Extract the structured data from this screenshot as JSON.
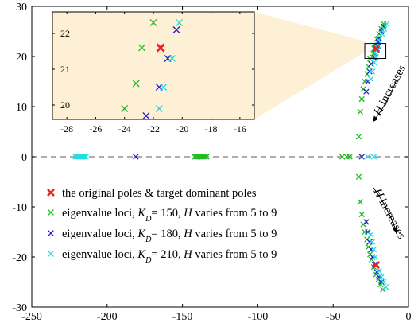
{
  "chart_data": {
    "type": "scatter",
    "title": "",
    "xlabel": "",
    "ylabel": "",
    "xlim": [
      -250,
      0
    ],
    "ylim": [
      -30,
      30
    ],
    "xticks": [
      -250,
      -200,
      -150,
      -100,
      -50,
      0
    ],
    "yticks": [
      -30,
      -20,
      -10,
      0,
      10,
      20,
      30
    ],
    "grid": false,
    "legend_position": "lower-left",
    "reference_line": {
      "y": 0,
      "style": "dashed"
    },
    "legend": [
      {
        "key": "original",
        "parts": [
          {
            "t": "the original poles & target dominant poles"
          }
        ]
      },
      {
        "key": "kd150",
        "parts": [
          {
            "t": "eigenvalue loci, "
          },
          {
            "t": "K",
            "it": true
          },
          {
            "t": "D",
            "sub": true,
            "it": true
          },
          {
            "t": "= 150, "
          },
          {
            "t": "H",
            "it": true
          },
          {
            "t": " varies from 5 to 9"
          }
        ]
      },
      {
        "key": "kd180",
        "parts": [
          {
            "t": "eigenvalue loci, "
          },
          {
            "t": "K",
            "it": true
          },
          {
            "t": "D",
            "sub": true,
            "it": true
          },
          {
            "t": "= 180, "
          },
          {
            "t": "H",
            "it": true
          },
          {
            "t": " varies from 5 to 9"
          }
        ]
      },
      {
        "key": "kd210",
        "parts": [
          {
            "t": "eigenvalue loci, "
          },
          {
            "t": "K",
            "it": true
          },
          {
            "t": "D",
            "sub": true,
            "it": true
          },
          {
            "t": "= 210, "
          },
          {
            "t": "H",
            "it": true
          },
          {
            "t": " varies from 5 to 9"
          }
        ]
      }
    ],
    "series": [
      {
        "key": "kd150",
        "color": "#22bb22",
        "points": [
          [
            -142,
            0
          ],
          [
            -141,
            0
          ],
          [
            -140,
            0
          ],
          [
            -139,
            0
          ],
          [
            -138,
            0
          ],
          [
            -137,
            0
          ],
          [
            -136,
            0
          ],
          [
            -135,
            0
          ],
          [
            -134,
            0
          ],
          [
            -44,
            0
          ],
          [
            -41,
            0
          ],
          [
            -39,
            0
          ],
          [
            -33,
            -4
          ],
          [
            -32,
            -9
          ],
          [
            -31,
            -11.5
          ],
          [
            -30,
            -13.5
          ],
          [
            -29,
            -15
          ],
          [
            -27.5,
            -16.5
          ],
          [
            -26.5,
            -18
          ],
          [
            -25.5,
            -19.5
          ],
          [
            -24.5,
            -20.5
          ],
          [
            -23,
            -22
          ],
          [
            -21.5,
            -23.5
          ],
          [
            -20,
            -24.5
          ],
          [
            -18.5,
            -25.5
          ],
          [
            -17,
            -26.5
          ],
          [
            -33,
            4
          ],
          [
            -32,
            9
          ],
          [
            -31,
            11.5
          ],
          [
            -30,
            13.5
          ],
          [
            -29,
            15
          ],
          [
            -27.5,
            16.5
          ],
          [
            -26.5,
            18
          ],
          [
            -25.5,
            19.5
          ],
          [
            -24,
            19.9
          ],
          [
            -23.2,
            20.6
          ],
          [
            -22.8,
            21.6
          ],
          [
            -22,
            22.3
          ],
          [
            -21,
            23.5
          ],
          [
            -19.5,
            24.5
          ],
          [
            -18,
            25.5
          ],
          [
            -16.5,
            26.5
          ]
        ]
      },
      {
        "key": "kd180",
        "color": "#1f1fd0",
        "points": [
          [
            -181,
            0
          ],
          [
            -31,
            0
          ],
          [
            -28,
            -13
          ],
          [
            -27,
            -15
          ],
          [
            -25.8,
            -17
          ],
          [
            -24.8,
            -18.5
          ],
          [
            -23.8,
            -20
          ],
          [
            -22.5,
            -21.5
          ],
          [
            -21,
            -23
          ],
          [
            -19.5,
            -24
          ],
          [
            -18,
            -25
          ],
          [
            -28,
            13
          ],
          [
            -27,
            15
          ],
          [
            -25.8,
            17
          ],
          [
            -24.8,
            18.5
          ],
          [
            -22.5,
            19.7
          ],
          [
            -21.6,
            20.5
          ],
          [
            -21,
            21.3
          ],
          [
            -20.4,
            22.1
          ],
          [
            -20,
            22.9
          ],
          [
            -19.5,
            23.6
          ],
          [
            -18,
            25
          ],
          [
            -16.5,
            26
          ]
        ]
      },
      {
        "key": "kd210",
        "color": "#22dddd",
        "points": [
          [
            -221,
            0
          ],
          [
            -220,
            0
          ],
          [
            -219,
            0
          ],
          [
            -218,
            0
          ],
          [
            -217,
            0
          ],
          [
            -216,
            0
          ],
          [
            -215,
            0
          ],
          [
            -214,
            0
          ],
          [
            -27,
            0
          ],
          [
            -23,
            0
          ],
          [
            -25,
            -15.5
          ],
          [
            -24,
            -17
          ],
          [
            -23,
            -18.5
          ],
          [
            -22,
            -20
          ],
          [
            -21,
            -21.5
          ],
          [
            -19.5,
            -22.8
          ],
          [
            -18,
            -24
          ],
          [
            -16.5,
            -25
          ],
          [
            -15,
            -26
          ],
          [
            -25,
            15.5
          ],
          [
            -24,
            17
          ],
          [
            -22.8,
            18.8
          ],
          [
            -21.6,
            19.9
          ],
          [
            -21.3,
            20.5
          ],
          [
            -20.7,
            21.3
          ],
          [
            -20.2,
            22.3
          ],
          [
            -19.7,
            23.3
          ],
          [
            -17.5,
            24.5
          ],
          [
            -16,
            25.5
          ],
          [
            -14.5,
            26.5
          ]
        ]
      }
    ],
    "original_poles": {
      "color": "#ee2222",
      "points": [
        [
          -21.5,
          21.6
        ],
        [
          -21.5,
          -21.6
        ]
      ]
    },
    "inset": {
      "xlim": [
        -29,
        -15
      ],
      "ylim": [
        19.6,
        22.6
      ],
      "xticks": [
        -28,
        -26,
        -24,
        -22,
        -20,
        -18,
        -16
      ],
      "yticks": [
        20,
        21,
        22
      ],
      "zoom_box": {
        "x": [
          -29,
          -15
        ],
        "y": [
          19.6,
          22.6
        ]
      }
    },
    "annotations": [
      {
        "parts": [
          {
            "t": "H",
            "it": true
          },
          {
            "t": " increases"
          }
        ]
      },
      {
        "parts": [
          {
            "t": "H",
            "it": true
          },
          {
            "t": " increases"
          }
        ]
      }
    ]
  }
}
